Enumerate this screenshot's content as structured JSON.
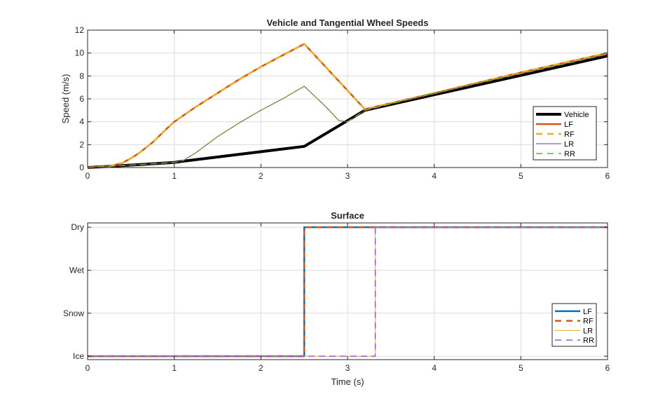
{
  "chart_data": [
    {
      "type": "line",
      "title": "Vehicle and Tangential Wheel Speeds",
      "xlabel": "",
      "ylabel": "Speed (m/s)",
      "xlim": [
        0,
        6
      ],
      "ylim": [
        0,
        12
      ],
      "xticks": [
        0,
        1,
        2,
        3,
        4,
        5,
        6
      ],
      "yticks": [
        0,
        2,
        4,
        6,
        8,
        10,
        12
      ],
      "grid": true,
      "legend_placement": "bottom-right",
      "series": [
        {
          "name": "Vehicle",
          "color": "#000000",
          "dash": "solid",
          "width": 4,
          "x": [
            0,
            0.25,
            1,
            1.1,
            2.5,
            3.2,
            6
          ],
          "y": [
            0,
            0.1,
            0.45,
            0.55,
            1.85,
            5.0,
            9.75
          ]
        },
        {
          "name": "LF",
          "color": "#D95319",
          "dash": "solid",
          "width": 2.5,
          "x": [
            0,
            0.25,
            0.4,
            0.5,
            0.6,
            0.75,
            0.9,
            1.0,
            1.25,
            1.5,
            1.75,
            2.0,
            2.25,
            2.5,
            3.2,
            4,
            5,
            6
          ],
          "y": [
            0,
            0.1,
            0.4,
            0.8,
            1.3,
            2.2,
            3.3,
            4.0,
            5.3,
            6.5,
            7.7,
            8.8,
            9.8,
            10.8,
            5.1,
            6.5,
            8.3,
            10.0
          ]
        },
        {
          "name": "RF",
          "color": "#EDB120",
          "dash": "dashed",
          "width": 2.5,
          "x": [
            0,
            0.25,
            0.4,
            0.5,
            0.6,
            0.75,
            0.9,
            1.0,
            1.25,
            1.5,
            1.75,
            2.0,
            2.25,
            2.5,
            3.2,
            4,
            5,
            6
          ],
          "y": [
            0,
            0.1,
            0.4,
            0.8,
            1.3,
            2.2,
            3.3,
            4.0,
            5.3,
            6.5,
            7.7,
            8.8,
            9.8,
            10.8,
            5.1,
            6.5,
            8.3,
            10.0
          ]
        },
        {
          "name": "LR",
          "color": "#7E2F8E",
          "dash": "solid",
          "width": 1,
          "x": [
            0,
            0.25,
            1,
            1.1,
            1.25,
            1.5,
            1.75,
            2.0,
            2.25,
            2.5,
            2.75,
            2.9,
            3.0,
            3.2,
            4,
            5,
            6
          ],
          "y": [
            0,
            0.1,
            0.45,
            0.6,
            1.3,
            2.7,
            3.9,
            5.0,
            6.0,
            7.1,
            5.3,
            4.1,
            4.0,
            5.0,
            6.5,
            8.2,
            9.9
          ]
        },
        {
          "name": "RR",
          "color": "#77AC30",
          "dash": "dashed",
          "width": 1.5,
          "x": [
            0,
            0.25,
            1,
            1.1,
            1.25,
            1.5,
            1.75,
            2.0,
            2.25,
            2.5,
            2.75,
            2.9,
            3.0,
            3.2,
            4,
            5,
            6
          ],
          "y": [
            0,
            0.1,
            0.45,
            0.6,
            1.3,
            2.7,
            3.9,
            5.0,
            6.0,
            7.1,
            5.3,
            4.1,
            4.0,
            5.0,
            6.5,
            8.2,
            9.9
          ]
        }
      ]
    },
    {
      "type": "line",
      "title": "Surface",
      "xlabel": "Time (s)",
      "ylabel": "",
      "xlim": [
        0,
        6
      ],
      "ylim": [
        -0.08,
        3.1
      ],
      "xticks": [
        0,
        1,
        2,
        3,
        4,
        5,
        6
      ],
      "yticks": [
        0,
        1,
        2,
        3
      ],
      "ytick_labels": [
        "Ice",
        "Snow",
        "Wet",
        "Dry"
      ],
      "grid": true,
      "legend_placement": "bottom-right",
      "series": [
        {
          "name": "LF",
          "color": "#0072BD",
          "dash": "solid",
          "width": 2.5,
          "x": [
            0,
            2.5,
            2.5,
            6
          ],
          "y": [
            0,
            0,
            3,
            3
          ]
        },
        {
          "name": "RF",
          "color": "#D95319",
          "dash": "dashed",
          "width": 2.5,
          "x": [
            0,
            2.5,
            2.5,
            6
          ],
          "y": [
            0,
            0,
            3,
            3
          ]
        },
        {
          "name": "LR",
          "color": "#EDB120",
          "dash": "solid",
          "width": 1,
          "x": [
            0,
            3.32,
            3.32,
            6
          ],
          "y": [
            0,
            0,
            3,
            3
          ]
        },
        {
          "name": "RR",
          "color": "#A050E0",
          "dash": "dashed",
          "width": 1.5,
          "x": [
            0,
            3.32,
            3.32,
            6
          ],
          "y": [
            0,
            0,
            3,
            3
          ]
        }
      ]
    }
  ]
}
